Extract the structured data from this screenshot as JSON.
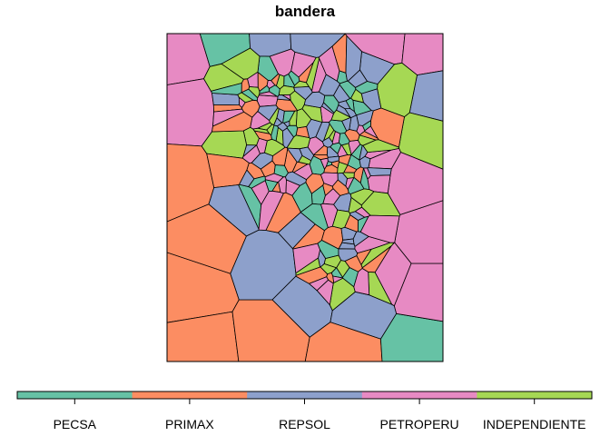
{
  "title": "bandera",
  "legend": [
    {
      "label": "PECSA",
      "color": "#66C2A5"
    },
    {
      "label": "PRIMAX",
      "color": "#FC8D62"
    },
    {
      "label": "REPSOL",
      "color": "#8DA0CB"
    },
    {
      "label": "PETROPERU",
      "color": "#E78AC3"
    },
    {
      "label": "INDEPENDIENTE",
      "color": "#A6D854"
    }
  ],
  "map": {
    "type": "voronoi-choropleth",
    "variable": "bandera",
    "border_color": "#000000"
  }
}
